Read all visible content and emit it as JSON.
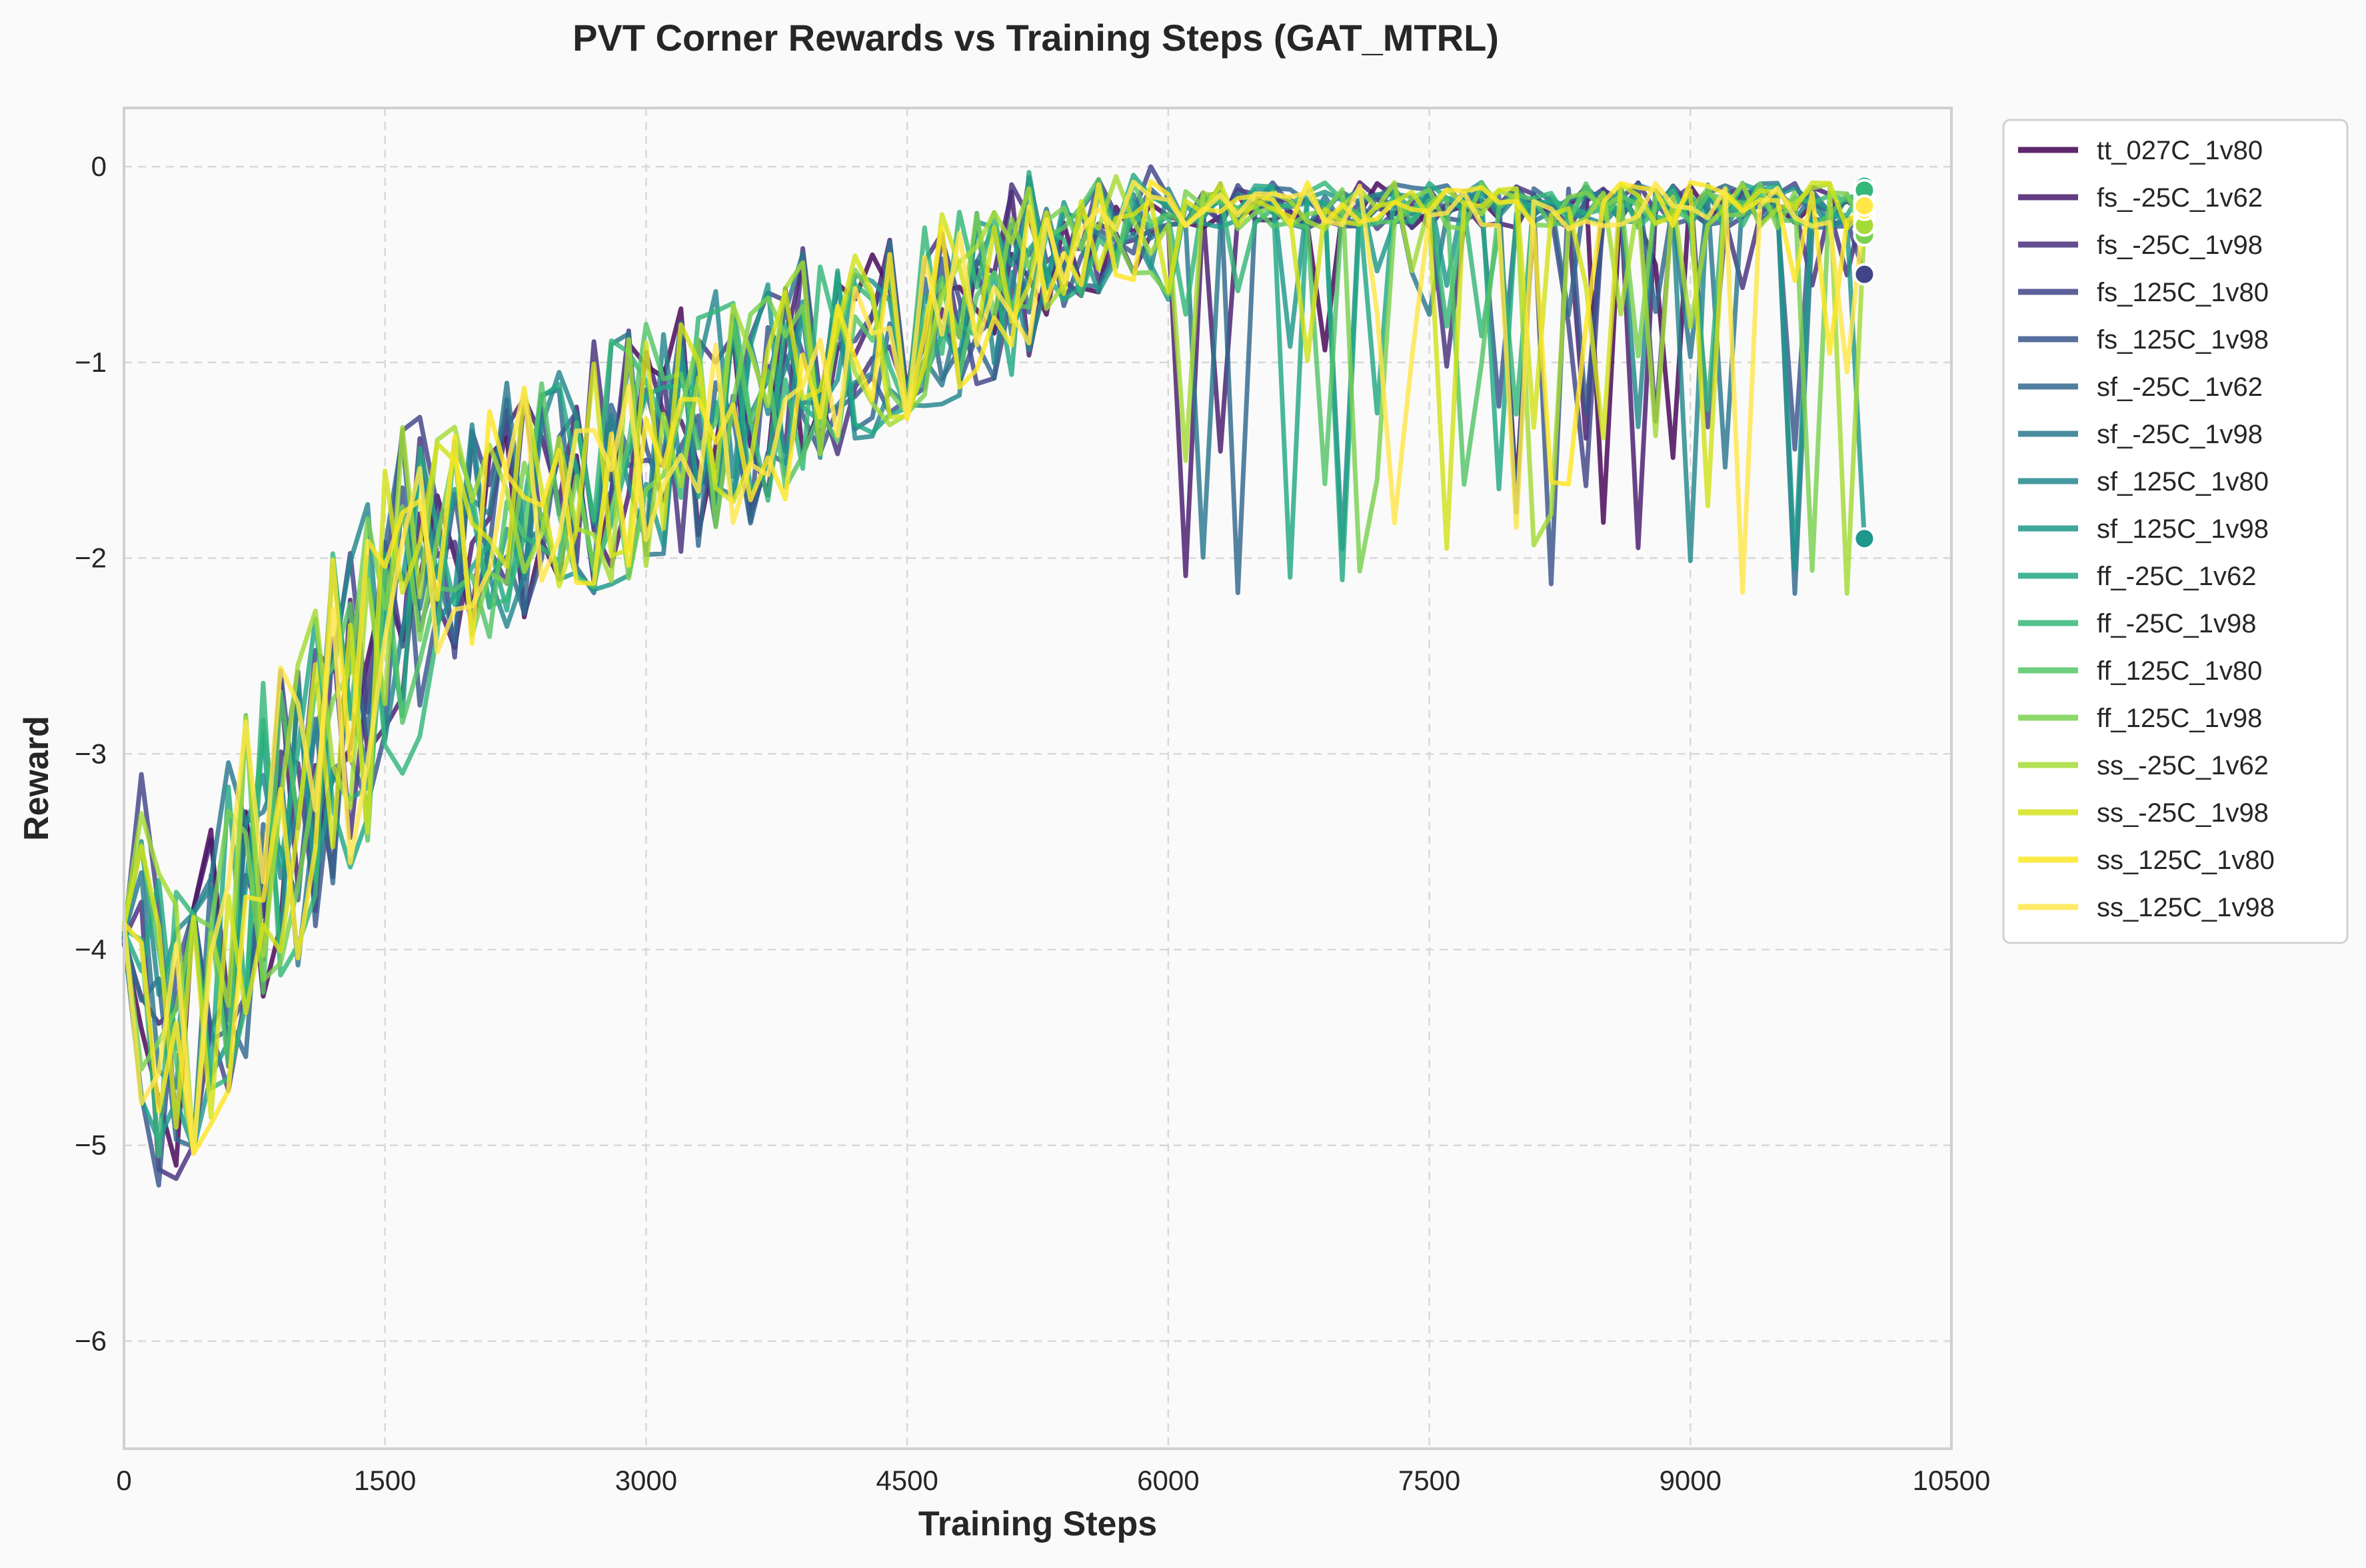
{
  "chart_data": {
    "type": "line",
    "title": "PVT Corner Rewards vs Training Steps (GAT_MTRL)",
    "xlabel": "Training Steps",
    "ylabel": "Reward",
    "xlim": [
      0,
      10500
    ],
    "ylim": [
      -6.55,
      0.3
    ],
    "x_ticks": [
      0,
      1500,
      3000,
      4500,
      6000,
      7500,
      9000,
      10500
    ],
    "y_ticks": [
      0,
      -1,
      -2,
      -3,
      -4,
      -5,
      -6
    ],
    "grid": true,
    "legend_position": "outside-right",
    "series": [
      {
        "name": "tt_027C_1v80",
        "color": "#440154",
        "seed": 11,
        "final": -0.22
      },
      {
        "name": "fs_-25C_1v62",
        "color": "#481a6c",
        "seed": 23,
        "final": -0.2
      },
      {
        "name": "fs_-25C_1v98",
        "color": "#472f7d",
        "seed": 37,
        "final": -0.18
      },
      {
        "name": "fs_125C_1v80",
        "color": "#414487",
        "seed": 41,
        "final": -0.55
      },
      {
        "name": "fs_125C_1v98",
        "color": "#39568c",
        "seed": 53,
        "final": -0.25
      },
      {
        "name": "sf_-25C_1v62",
        "color": "#31688e",
        "seed": 67,
        "final": -0.3
      },
      {
        "name": "sf_-25C_1v98",
        "color": "#2a788e",
        "seed": 71,
        "final": -0.15
      },
      {
        "name": "sf_125C_1v80",
        "color": "#23888e",
        "seed": 83,
        "final": -0.28
      },
      {
        "name": "sf_125C_1v98",
        "color": "#1f988b",
        "seed": 97,
        "final": -1.9
      },
      {
        "name": "ff_-25C_1v62",
        "color": "#22a884",
        "seed": 101,
        "final": -0.1
      },
      {
        "name": "ff_-25C_1v98",
        "color": "#35b779",
        "seed": 113,
        "final": -0.12
      },
      {
        "name": "ff_125C_1v80",
        "color": "#54c568",
        "seed": 127,
        "final": -0.25
      },
      {
        "name": "ff_125C_1v98",
        "color": "#7ad151",
        "seed": 131,
        "final": -0.35
      },
      {
        "name": "ss_-25C_1v62",
        "color": "#a5db36",
        "seed": 139,
        "final": -0.3
      },
      {
        "name": "ss_-25C_1v98",
        "color": "#d2e21b",
        "seed": 149,
        "final": -0.2
      },
      {
        "name": "ss_125C_1v80",
        "color": "#fde725",
        "seed": 157,
        "final": -0.22
      },
      {
        "name": "ss_125C_1v98",
        "color": "#ffe74a",
        "seed": 163,
        "final": -0.2
      }
    ]
  }
}
